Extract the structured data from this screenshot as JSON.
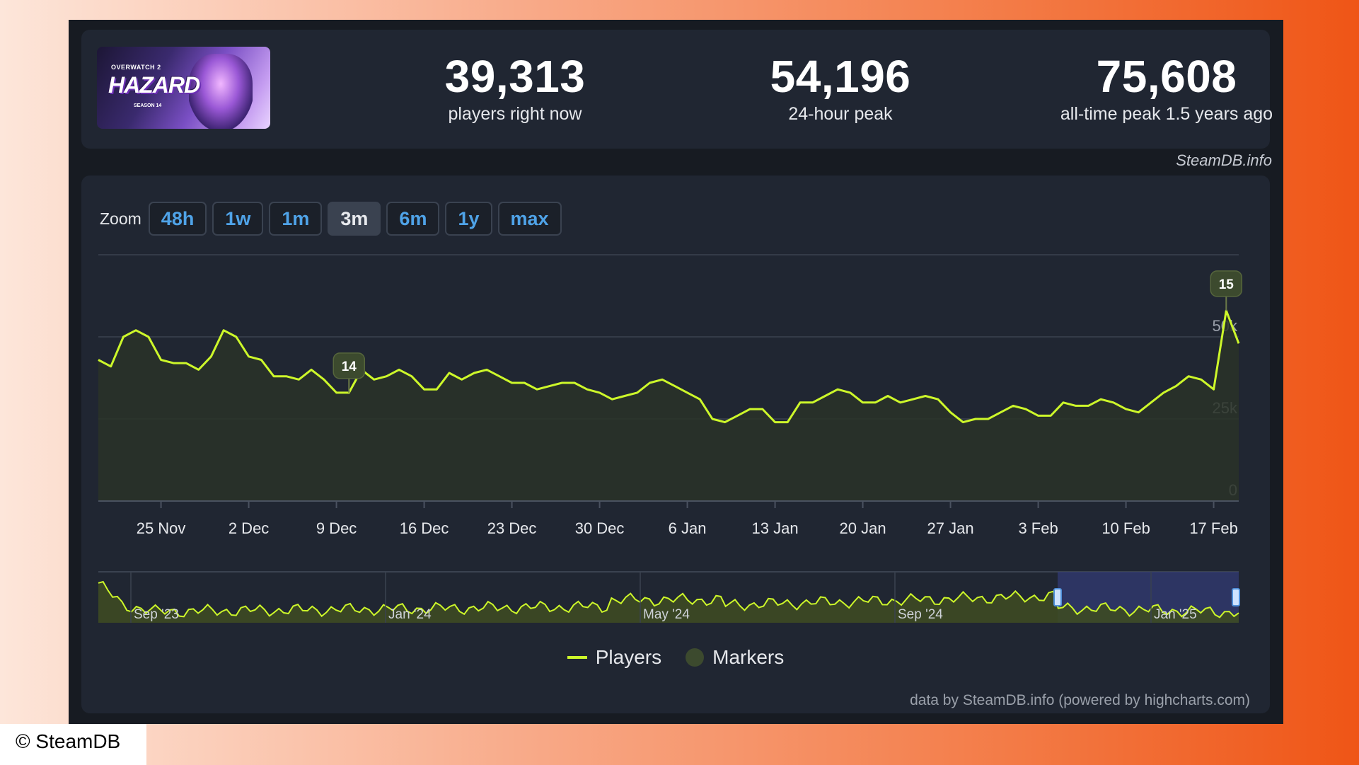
{
  "stats": {
    "current": {
      "value": "39,313",
      "label": "players right now"
    },
    "peak24": {
      "value": "54,196",
      "label": "24-hour peak"
    },
    "alltime": {
      "value": "75,608",
      "label": "all-time peak 1.5 years ago"
    }
  },
  "game_banner": {
    "top": "OVERWATCH 2",
    "main": "HAZARD",
    "sub": "SEASON 14"
  },
  "credit_top": "SteamDB.info",
  "zoom": {
    "label": "Zoom",
    "buttons": [
      "48h",
      "1w",
      "1m",
      "3m",
      "6m",
      "1y",
      "max"
    ],
    "active": "3m"
  },
  "legend": {
    "players": "Players",
    "markers": "Markers"
  },
  "data_credit": "data by SteamDB.info (powered by highcharts.com)",
  "copyright": "© SteamDB",
  "colors": {
    "line": "#cdf72a",
    "fill": "#2a3228",
    "marker": "#3c4a2e",
    "navigator_sel": "#333c78"
  },
  "chart_data": {
    "type": "area",
    "x_ticks": [
      "25 Nov",
      "2 Dec",
      "9 Dec",
      "16 Dec",
      "23 Dec",
      "30 Dec",
      "6 Jan",
      "13 Jan",
      "20 Jan",
      "27 Jan",
      "3 Feb",
      "10 Feb",
      "17 Feb"
    ],
    "y_ticks": [
      "0",
      "25k",
      "50k"
    ],
    "ylim": [
      0,
      75000
    ],
    "grid": true,
    "series": [
      {
        "name": "Players",
        "points": [
          [
            "2024-11-20",
            43000
          ],
          [
            "2024-11-21",
            41000
          ],
          [
            "2024-11-22",
            50000
          ],
          [
            "2024-11-23",
            52000
          ],
          [
            "2024-11-24",
            50000
          ],
          [
            "2024-11-25",
            43000
          ],
          [
            "2024-11-26",
            42000
          ],
          [
            "2024-11-27",
            42000
          ],
          [
            "2024-11-28",
            40000
          ],
          [
            "2024-11-29",
            44000
          ],
          [
            "2024-11-30",
            52000
          ],
          [
            "2024-12-01",
            50000
          ],
          [
            "2024-12-02",
            44000
          ],
          [
            "2024-12-03",
            43000
          ],
          [
            "2024-12-04",
            38000
          ],
          [
            "2024-12-05",
            38000
          ],
          [
            "2024-12-06",
            37000
          ],
          [
            "2024-12-07",
            40000
          ],
          [
            "2024-12-08",
            37000
          ],
          [
            "2024-12-09",
            33000
          ],
          [
            "2024-12-10",
            33000
          ],
          [
            "2024-12-11",
            40000
          ],
          [
            "2024-12-12",
            37000
          ],
          [
            "2024-12-13",
            38000
          ],
          [
            "2024-12-14",
            40000
          ],
          [
            "2024-12-15",
            38000
          ],
          [
            "2024-12-16",
            34000
          ],
          [
            "2024-12-17",
            34000
          ],
          [
            "2024-12-18",
            39000
          ],
          [
            "2024-12-19",
            37000
          ],
          [
            "2024-12-20",
            39000
          ],
          [
            "2024-12-21",
            40000
          ],
          [
            "2024-12-22",
            38000
          ],
          [
            "2024-12-23",
            36000
          ],
          [
            "2024-12-24",
            36000
          ],
          [
            "2024-12-25",
            34000
          ],
          [
            "2024-12-26",
            35000
          ],
          [
            "2024-12-27",
            36000
          ],
          [
            "2024-12-28",
            36000
          ],
          [
            "2024-12-29",
            34000
          ],
          [
            "2024-12-30",
            33000
          ],
          [
            "2024-12-31",
            31000
          ],
          [
            "2025-01-01",
            32000
          ],
          [
            "2025-01-02",
            33000
          ],
          [
            "2025-01-03",
            36000
          ],
          [
            "2025-01-04",
            37000
          ],
          [
            "2025-01-05",
            35000
          ],
          [
            "2025-01-06",
            33000
          ],
          [
            "2025-01-07",
            31000
          ],
          [
            "2025-01-08",
            25000
          ],
          [
            "2025-01-09",
            24000
          ],
          [
            "2025-01-10",
            26000
          ],
          [
            "2025-01-11",
            28000
          ],
          [
            "2025-01-12",
            28000
          ],
          [
            "2025-01-13",
            24000
          ],
          [
            "2025-01-14",
            24000
          ],
          [
            "2025-01-15",
            30000
          ],
          [
            "2025-01-16",
            30000
          ],
          [
            "2025-01-17",
            32000
          ],
          [
            "2025-01-18",
            34000
          ],
          [
            "2025-01-19",
            33000
          ],
          [
            "2025-01-20",
            30000
          ],
          [
            "2025-01-21",
            30000
          ],
          [
            "2025-01-22",
            32000
          ],
          [
            "2025-01-23",
            30000
          ],
          [
            "2025-01-24",
            31000
          ],
          [
            "2025-01-25",
            32000
          ],
          [
            "2025-01-26",
            31000
          ],
          [
            "2025-01-27",
            27000
          ],
          [
            "2025-01-28",
            24000
          ],
          [
            "2025-01-29",
            25000
          ],
          [
            "2025-01-30",
            25000
          ],
          [
            "2025-01-31",
            27000
          ],
          [
            "2025-02-01",
            29000
          ],
          [
            "2025-02-02",
            28000
          ],
          [
            "2025-02-03",
            26000
          ],
          [
            "2025-02-04",
            26000
          ],
          [
            "2025-02-05",
            30000
          ],
          [
            "2025-02-06",
            29000
          ],
          [
            "2025-02-07",
            29000
          ],
          [
            "2025-02-08",
            31000
          ],
          [
            "2025-02-09",
            30000
          ],
          [
            "2025-02-10",
            28000
          ],
          [
            "2025-02-11",
            27000
          ],
          [
            "2025-02-12",
            30000
          ],
          [
            "2025-02-13",
            33000
          ],
          [
            "2025-02-14",
            35000
          ],
          [
            "2025-02-15",
            38000
          ],
          [
            "2025-02-16",
            37000
          ],
          [
            "2025-02-17",
            34000
          ],
          [
            "2025-02-18",
            58000
          ],
          [
            "2025-02-19",
            48000
          ]
        ]
      }
    ],
    "markers": [
      {
        "label": "14",
        "date": "2024-12-10"
      },
      {
        "label": "15",
        "date": "2025-02-18"
      }
    ],
    "navigator": {
      "labels": [
        "Sep '23",
        "Jan '24",
        "May '24",
        "Sep '24",
        "Jan '25"
      ],
      "selected_range": "3m"
    }
  }
}
